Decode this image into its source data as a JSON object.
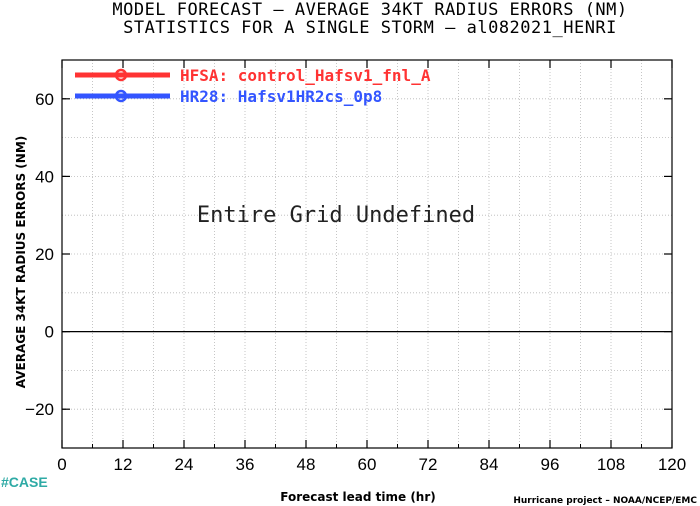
{
  "chart_data": {
    "type": "line",
    "title_line1": "MODEL FORECAST – AVERAGE 34KT RADIUS ERRORS (NM)",
    "title_line2": "STATISTICS FOR A SINGLE STORM – al082021_HENRI",
    "xlabel": "Forecast lead time (hr)",
    "ylabel": "AVERAGE 34KT RADIUS ERRORS (NM)",
    "xlim": [
      0,
      120
    ],
    "ylim": [
      -30,
      70
    ],
    "xticks": [
      "0",
      "12",
      "24",
      "36",
      "48",
      "60",
      "72",
      "84",
      "96",
      "108",
      "120"
    ],
    "yticks": [
      "60",
      "40",
      "20",
      "0",
      "−20"
    ],
    "grid": true,
    "legend_position": "top-left",
    "series": [
      {
        "name": "HFSA: control_Hafsv1_fnl_A",
        "color": "#ff3333",
        "values": []
      },
      {
        "name": "HR28: Hafsv1HR2cs_0p8",
        "color": "#3355ff",
        "values": []
      }
    ],
    "annotation": "Entire Grid Undefined"
  },
  "footer": {
    "case_label": "#CASE",
    "credit": "Hurricane project – NOAA/NCEP/EMC"
  }
}
